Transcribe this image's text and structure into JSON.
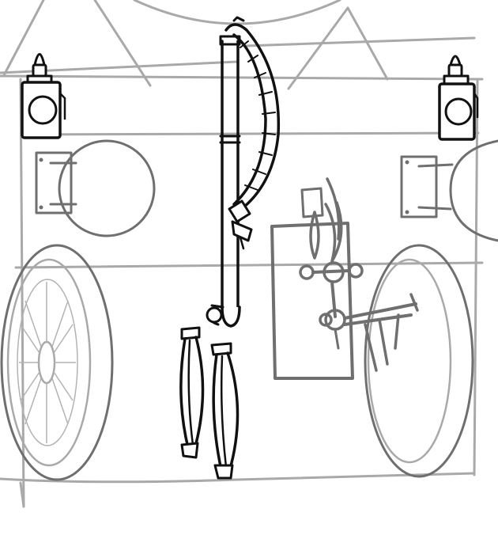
{
  "canvas": {
    "background": "#ffffff",
    "ink_color": "#111111",
    "guide_color": "#a9a9a9",
    "mid_color": "#6f6f6f"
  },
  "drawing": {
    "subject": "",
    "style": "pencil sketch with inked details"
  }
}
